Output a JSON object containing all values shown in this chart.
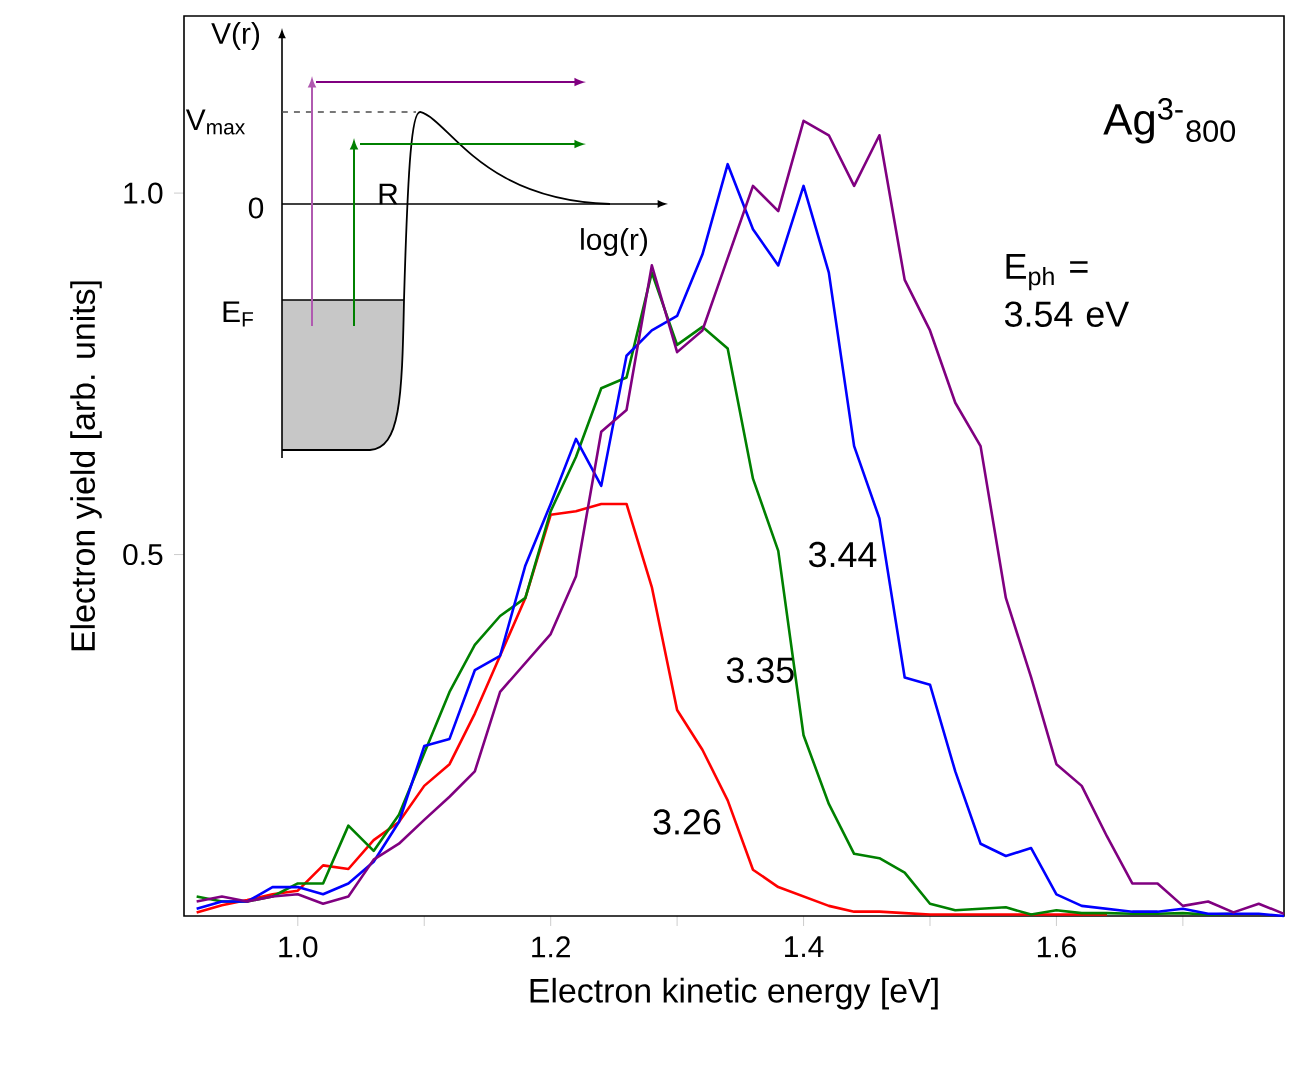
{
  "chart_data": {
    "type": "line",
    "title": "Ag$^{3-}$$_{800}$",
    "xlabel": "Electron kinetic energy [eV]",
    "ylabel": "Electron yield [arb. units]",
    "x": [
      0.92,
      0.94,
      0.96,
      0.98,
      1.0,
      1.02,
      1.04,
      1.06,
      1.08,
      1.1,
      1.12,
      1.14,
      1.16,
      1.18,
      1.2,
      1.22,
      1.24,
      1.26,
      1.28,
      1.3,
      1.32,
      1.34,
      1.36,
      1.38,
      1.4,
      1.42,
      1.44,
      1.46,
      1.48,
      1.5,
      1.52,
      1.54,
      1.56,
      1.58,
      1.6,
      1.62,
      1.64,
      1.66,
      1.68,
      1.7,
      1.72,
      1.74,
      1.76,
      1.78
    ],
    "series": [
      {
        "name": "3.26",
        "color": "#ff0000",
        "values": [
          0.005,
          0.015,
          0.022,
          0.03,
          0.035,
          0.07,
          0.065,
          0.105,
          0.13,
          0.18,
          0.21,
          0.28,
          0.36,
          0.44,
          0.555,
          0.56,
          0.57,
          0.57,
          0.455,
          0.285,
          0.23,
          0.16,
          0.064,
          0.04,
          0.027,
          0.014,
          0.006,
          0.006,
          0.004,
          0.002,
          0.002,
          0.002,
          0.002,
          0.002,
          0.002,
          0.002,
          0.002,
          null,
          null,
          null,
          null,
          null,
          null,
          null
        ]
      },
      {
        "name": "3.35",
        "color": "#008000",
        "values": [
          0.027,
          0.02,
          0.02,
          0.027,
          0.045,
          0.045,
          0.125,
          0.09,
          0.14,
          0.225,
          0.31,
          0.375,
          0.415,
          0.44,
          0.56,
          0.635,
          0.73,
          0.745,
          0.89,
          0.79,
          0.815,
          0.785,
          0.605,
          0.505,
          0.25,
          0.155,
          0.086,
          0.08,
          0.06,
          0.017,
          0.008,
          0.01,
          0.012,
          0.002,
          0.008,
          0.004,
          0.004,
          0.003,
          0.003,
          0.004,
          0.002,
          0.003,
          null,
          null
        ]
      },
      {
        "name": "3.44",
        "color": "#0000ff",
        "values": [
          0.01,
          0.02,
          0.02,
          0.04,
          0.04,
          0.03,
          0.045,
          0.075,
          0.13,
          0.235,
          0.245,
          0.34,
          0.36,
          0.485,
          0.57,
          0.66,
          0.595,
          0.775,
          0.81,
          0.83,
          0.915,
          1.04,
          0.95,
          0.9,
          1.01,
          0.89,
          0.65,
          0.55,
          0.33,
          0.32,
          0.2,
          0.1,
          0.083,
          0.094,
          0.03,
          0.014,
          0.01,
          0.006,
          0.006,
          0.01,
          0.003,
          0.003,
          0.003,
          0.0
        ]
      },
      {
        "name": "E$_{ph}$ = 3.54 eV",
        "color": "#800080",
        "values": [
          0.02,
          0.027,
          0.02,
          0.027,
          0.03,
          0.017,
          0.027,
          0.078,
          0.1,
          0.133,
          0.165,
          0.2,
          0.31,
          0.35,
          0.39,
          0.47,
          0.67,
          0.7,
          0.9,
          0.78,
          0.81,
          0.91,
          1.01,
          0.975,
          1.1,
          1.08,
          1.01,
          1.08,
          0.88,
          0.81,
          0.71,
          0.65,
          0.44,
          0.33,
          0.21,
          0.18,
          0.11,
          0.045,
          0.045,
          0.014,
          0.02,
          0.005,
          0.017,
          0.003
        ]
      }
    ],
    "xlim": [
      0.91,
      1.78
    ],
    "ylim": [
      0,
      1.245
    ],
    "xticks": [
      {
        "value": 1.0,
        "label": "1.0"
      },
      {
        "value": 1.1,
        "label": null
      },
      {
        "value": 1.2,
        "label": "1.2"
      },
      {
        "value": 1.3,
        "label": null
      },
      {
        "value": 1.4,
        "label": "1.4"
      },
      {
        "value": 1.5,
        "label": null
      },
      {
        "value": 1.6,
        "label": "1.6"
      },
      {
        "value": 1.7,
        "label": null
      }
    ],
    "yticks": [
      {
        "value": 0.5,
        "label": "0.5"
      },
      {
        "value": 1.0,
        "label": "1.0"
      }
    ],
    "annotations": [
      "V(r)",
      "V$_{max}$",
      "0",
      "log(r)",
      "R",
      "E$_{F}$"
    ]
  }
}
